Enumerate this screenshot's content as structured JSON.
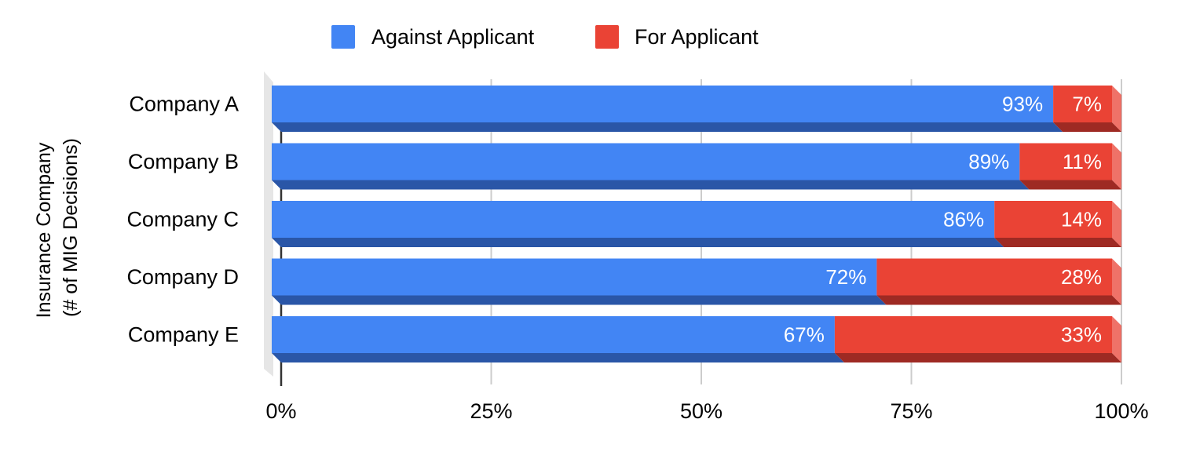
{
  "chart_data": {
    "type": "bar",
    "orientation": "horizontal",
    "stacked": "percent",
    "three_d": true,
    "categories": [
      "Company A",
      "Company B",
      "Company C",
      "Company D",
      "Company E"
    ],
    "series": [
      {
        "name": "Against Applicant",
        "values": [
          93,
          89,
          86,
          72,
          67
        ],
        "labels": [
          "93%",
          "89%",
          "86%",
          "72%",
          "67%"
        ],
        "color": "#4285f4",
        "shade": "#2a56a7"
      },
      {
        "name": "For Applicant",
        "values": [
          7,
          11,
          14,
          28,
          33
        ],
        "labels": [
          "7%",
          "11%",
          "14%",
          "28%",
          "33%"
        ],
        "color": "#ea4335",
        "shade": "#9e2a23"
      }
    ],
    "ylabel": [
      "Insurance Company",
      "(# of MIG Decisions)"
    ],
    "xlim": [
      0,
      100
    ],
    "xticks": [
      0,
      25,
      50,
      75,
      100
    ],
    "xtick_labels": [
      "0%",
      "25%",
      "50%",
      "75%",
      "100%"
    ],
    "grid": true,
    "legend_position": "top-center"
  }
}
